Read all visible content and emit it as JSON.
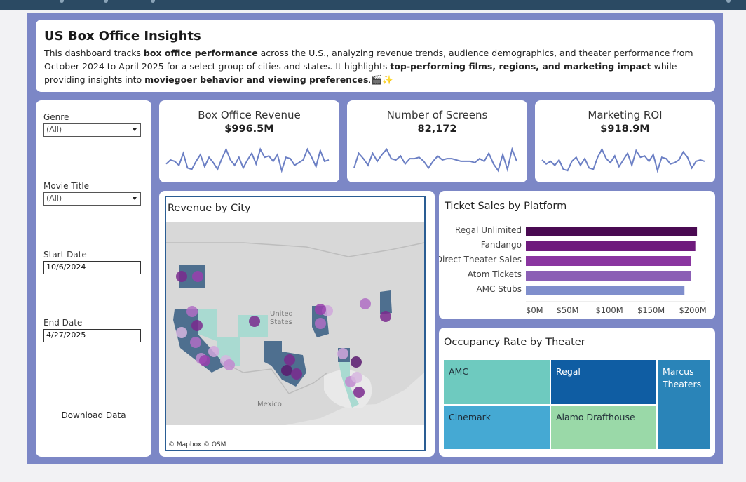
{
  "header": {
    "title": "US Box Office Insights",
    "desc": [
      {
        "t": "This dashboard tracks ",
        "b": false
      },
      {
        "t": "box office performance",
        "b": true
      },
      {
        "t": " across the U.S., analyzing revenue trends, audience demographics, and theater performance from October 2024 to April 2025 for a select group of cities and states. It highlights ",
        "b": false
      },
      {
        "t": "top-performing films, regions, and marketing impact",
        "b": true
      },
      {
        "t": " while providing insights into ",
        "b": false
      },
      {
        "t": "moviegoer behavior and viewing preferences",
        "b": true
      },
      {
        "t": ".🎬✨",
        "b": false
      }
    ]
  },
  "filters": {
    "genre_label": "Genre",
    "genre_value": "(All)",
    "movie_label": "Movie Title",
    "movie_value": "(All)",
    "start_label": "Start Date",
    "start_value": "10/6/2024",
    "end_label": "End Date",
    "end_value": "4/27/2025",
    "download_label": "Download Data"
  },
  "kpis": [
    {
      "title": "Box Office Revenue",
      "value": "$996.5M",
      "trend": [
        0.35,
        0.5,
        0.45,
        0.3,
        0.75,
        0.2,
        0.15,
        0.45,
        0.7,
        0.25,
        0.6,
        0.4,
        0.15,
        0.55,
        0.9,
        0.5,
        0.3,
        0.6,
        0.2,
        0.5,
        0.75,
        0.35,
        0.9,
        0.6,
        0.65,
        0.45,
        0.7,
        0.1,
        0.6,
        0.55,
        0.3,
        0.4,
        0.5,
        0.9,
        0.6,
        0.25,
        0.85,
        0.45,
        0.5
      ]
    },
    {
      "title": "Number of Screens",
      "value": "82,172",
      "trend": [
        0.2,
        0.75,
        0.55,
        0.3,
        0.75,
        0.45,
        0.7,
        0.9,
        0.55,
        0.5,
        0.65,
        0.35,
        0.55,
        0.55,
        0.6,
        0.45,
        0.2,
        0.45,
        0.65,
        0.5,
        0.55,
        0.55,
        0.5,
        0.45,
        0.45,
        0.45,
        0.4,
        0.55,
        0.45,
        0.75,
        0.35,
        0.1,
        0.7,
        0.15,
        0.9,
        0.45
      ]
    },
    {
      "title": "Marketing ROI",
      "value": "$918.9M",
      "trend": [
        0.5,
        0.35,
        0.45,
        0.3,
        0.5,
        0.15,
        0.1,
        0.45,
        0.6,
        0.3,
        0.55,
        0.2,
        0.15,
        0.6,
        0.9,
        0.55,
        0.4,
        0.65,
        0.25,
        0.5,
        0.75,
        0.3,
        0.85,
        0.6,
        0.65,
        0.45,
        0.7,
        0.1,
        0.6,
        0.55,
        0.35,
        0.4,
        0.5,
        0.8,
        0.6,
        0.2,
        0.45,
        0.5,
        0.45
      ]
    }
  ],
  "map": {
    "title": "Revenue by City",
    "credit": "© Mapbox  © OSM",
    "label_us": "United\nStates",
    "label_mexico": "Mexico"
  },
  "platforms": {
    "title": "Ticket Sales by Platform",
    "chart_data": {
      "type": "bar",
      "orientation": "horizontal",
      "categories": [
        "Regal Unlimited",
        "Fandango",
        "Direct Theater Sales",
        "Atom Tickets",
        "AMC Stubs"
      ],
      "values": [
        205,
        203,
        198,
        198,
        190
      ],
      "xlim": [
        0,
        215
      ],
      "ticks": [
        0,
        50,
        100,
        150,
        200
      ],
      "tick_labels": [
        "$0M",
        "$50M",
        "$100M",
        "$150M",
        "$200M"
      ],
      "colors": [
        "#4a0a52",
        "#6e1a7c",
        "#8a35a0",
        "#8b5fb5",
        "#7f8ecc"
      ]
    }
  },
  "occupancy": {
    "title": "Occupancy Rate by Theater",
    "tiles": [
      {
        "name": "AMC",
        "color": "#6ecabf"
      },
      {
        "name": "Regal",
        "color": "#0f5da3"
      },
      {
        "name": "Marcus Theaters",
        "color": "#2a84b8"
      },
      {
        "name": "Cinemark",
        "color": "#45a9d3"
      },
      {
        "name": "Alamo Drafthouse",
        "color": "#9ad9a8"
      }
    ]
  }
}
